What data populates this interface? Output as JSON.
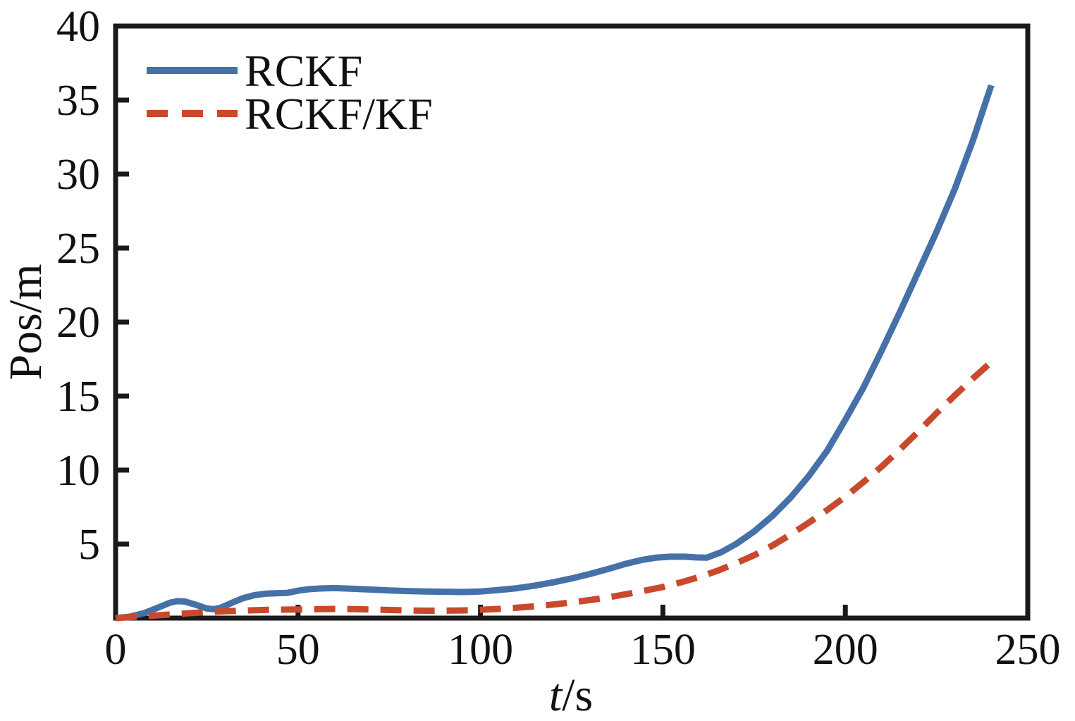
{
  "figure": {
    "background": "#ffffff",
    "axis_color": "#1a1a1a",
    "text_color": "#111111"
  },
  "chart_data": {
    "type": "line",
    "title": "",
    "xlabel": "t/s",
    "ylabel": "Pos/m",
    "xlim": [
      0,
      250
    ],
    "ylim": [
      0,
      40
    ],
    "x_ticks": [
      0,
      50,
      100,
      150,
      200,
      250
    ],
    "y_ticks": [
      5,
      10,
      15,
      20,
      25,
      30,
      35,
      40
    ],
    "grid": false,
    "legend_position": "upper-left",
    "series": [
      {
        "name": "RCKF",
        "color": "#4571a8",
        "style": "solid",
        "points": [
          [
            0,
            0
          ],
          [
            4,
            0.1
          ],
          [
            8,
            0.35
          ],
          [
            12,
            0.75
          ],
          [
            15,
            1.05
          ],
          [
            17,
            1.15
          ],
          [
            19,
            1.12
          ],
          [
            22,
            0.9
          ],
          [
            25,
            0.65
          ],
          [
            27,
            0.6
          ],
          [
            29,
            0.72
          ],
          [
            32,
            1.05
          ],
          [
            35,
            1.35
          ],
          [
            38,
            1.55
          ],
          [
            41,
            1.65
          ],
          [
            44,
            1.68
          ],
          [
            47,
            1.7
          ],
          [
            50,
            1.85
          ],
          [
            53,
            1.95
          ],
          [
            56,
            2.0
          ],
          [
            60,
            2.03
          ],
          [
            65,
            1.98
          ],
          [
            70,
            1.93
          ],
          [
            75,
            1.87
          ],
          [
            80,
            1.83
          ],
          [
            85,
            1.8
          ],
          [
            90,
            1.78
          ],
          [
            95,
            1.76
          ],
          [
            100,
            1.8
          ],
          [
            105,
            1.9
          ],
          [
            110,
            2.02
          ],
          [
            115,
            2.2
          ],
          [
            120,
            2.42
          ],
          [
            125,
            2.68
          ],
          [
            130,
            2.98
          ],
          [
            135,
            3.32
          ],
          [
            140,
            3.68
          ],
          [
            144,
            3.92
          ],
          [
            148,
            4.08
          ],
          [
            152,
            4.15
          ],
          [
            156,
            4.15
          ],
          [
            159,
            4.1
          ],
          [
            162,
            4.08
          ],
          [
            166,
            4.45
          ],
          [
            170,
            5.0
          ],
          [
            175,
            5.85
          ],
          [
            180,
            6.9
          ],
          [
            185,
            8.15
          ],
          [
            190,
            9.6
          ],
          [
            195,
            11.3
          ],
          [
            200,
            13.4
          ],
          [
            205,
            15.6
          ],
          [
            210,
            18.1
          ],
          [
            215,
            20.7
          ],
          [
            220,
            23.4
          ],
          [
            225,
            26.1
          ],
          [
            230,
            29.0
          ],
          [
            235,
            32.3
          ],
          [
            240,
            36.0
          ]
        ]
      },
      {
        "name": "RCKF/KF",
        "color": "#c9492c",
        "style": "dashed",
        "points": [
          [
            0,
            0
          ],
          [
            5,
            0.08
          ],
          [
            10,
            0.16
          ],
          [
            15,
            0.25
          ],
          [
            20,
            0.33
          ],
          [
            25,
            0.4
          ],
          [
            30,
            0.46
          ],
          [
            35,
            0.51
          ],
          [
            40,
            0.55
          ],
          [
            45,
            0.57
          ],
          [
            50,
            0.58
          ],
          [
            55,
            0.6
          ],
          [
            60,
            0.62
          ],
          [
            65,
            0.61
          ],
          [
            70,
            0.58
          ],
          [
            75,
            0.55
          ],
          [
            80,
            0.52
          ],
          [
            85,
            0.5
          ],
          [
            90,
            0.5
          ],
          [
            95,
            0.52
          ],
          [
            100,
            0.56
          ],
          [
            105,
            0.62
          ],
          [
            110,
            0.7
          ],
          [
            115,
            0.8
          ],
          [
            120,
            0.92
          ],
          [
            125,
            1.06
          ],
          [
            130,
            1.22
          ],
          [
            135,
            1.4
          ],
          [
            140,
            1.62
          ],
          [
            145,
            1.85
          ],
          [
            150,
            2.1
          ],
          [
            155,
            2.42
          ],
          [
            160,
            2.78
          ],
          [
            165,
            3.2
          ],
          [
            170,
            3.7
          ],
          [
            175,
            4.25
          ],
          [
            180,
            4.9
          ],
          [
            185,
            5.65
          ],
          [
            190,
            6.45
          ],
          [
            195,
            7.3
          ],
          [
            200,
            8.2
          ],
          [
            205,
            9.2
          ],
          [
            210,
            10.25
          ],
          [
            215,
            11.4
          ],
          [
            220,
            12.6
          ],
          [
            225,
            13.85
          ],
          [
            230,
            15.05
          ],
          [
            235,
            16.2
          ],
          [
            240,
            17.3
          ]
        ]
      }
    ]
  }
}
